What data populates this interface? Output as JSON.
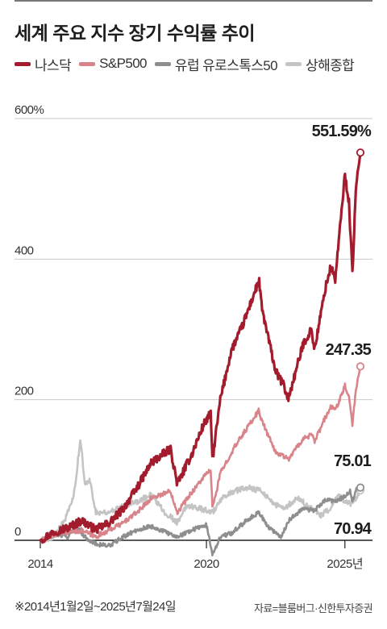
{
  "title": "세계 주요 지수 장기 수익률 추이",
  "footnote": "※2014년1월2일~2025년7월24일",
  "source": "자료=블룸버그·신한투자증권",
  "chart_data": {
    "type": "line",
    "title": "세계 주요 지수 장기 수익률 추이",
    "xlabel": "",
    "ylabel": "",
    "ylim": [
      0,
      600
    ],
    "xlim": [
      2014.0,
      2025.56
    ],
    "grid": true,
    "legend": "top",
    "y_ticks": [
      {
        "value": 600,
        "label": "600%"
      },
      {
        "value": 400,
        "label": "400"
      },
      {
        "value": 200,
        "label": "200"
      },
      {
        "value": 0,
        "label": "0"
      }
    ],
    "x_ticks": [
      {
        "value": 2014,
        "label": "2014"
      },
      {
        "value": 2020,
        "label": "2020"
      },
      {
        "value": 2025,
        "label": "2025년"
      }
    ],
    "series": [
      {
        "name": "나스닥",
        "color": "#a31c2d",
        "end_label": "551.59%",
        "end_value": 551.59,
        "points": [
          [
            2014.0,
            0
          ],
          [
            2014.5,
            12
          ],
          [
            2015.0,
            18
          ],
          [
            2015.5,
            28
          ],
          [
            2016.0,
            15
          ],
          [
            2016.5,
            25
          ],
          [
            2017.0,
            45
          ],
          [
            2017.5,
            75
          ],
          [
            2018.0,
            110
          ],
          [
            2018.7,
            130
          ],
          [
            2018.95,
            80
          ],
          [
            2019.5,
            125
          ],
          [
            2019.9,
            165
          ],
          [
            2020.15,
            180
          ],
          [
            2020.22,
            115
          ],
          [
            2020.5,
            200
          ],
          [
            2020.9,
            270
          ],
          [
            2021.3,
            305
          ],
          [
            2021.9,
            370
          ],
          [
            2022.0,
            330
          ],
          [
            2022.5,
            240
          ],
          [
            2022.8,
            220
          ],
          [
            2022.95,
            200
          ],
          [
            2023.5,
            280
          ],
          [
            2023.8,
            300
          ],
          [
            2023.9,
            270
          ],
          [
            2024.3,
            360
          ],
          [
            2024.5,
            390
          ],
          [
            2024.65,
            370
          ],
          [
            2025.0,
            520
          ],
          [
            2025.15,
            480
          ],
          [
            2025.27,
            380
          ],
          [
            2025.4,
            500
          ],
          [
            2025.56,
            551.59
          ]
        ]
      },
      {
        "name": "S&P500",
        "color": "#d8848a",
        "end_label": "247.35",
        "end_value": 247.35,
        "points": [
          [
            2014.0,
            0
          ],
          [
            2014.5,
            8
          ],
          [
            2015.0,
            12
          ],
          [
            2015.5,
            14
          ],
          [
            2016.0,
            5
          ],
          [
            2016.5,
            15
          ],
          [
            2017.0,
            25
          ],
          [
            2017.5,
            40
          ],
          [
            2018.0,
            60
          ],
          [
            2018.7,
            70
          ],
          [
            2018.95,
            40
          ],
          [
            2019.5,
            70
          ],
          [
            2019.9,
            90
          ],
          [
            2020.15,
            100
          ],
          [
            2020.22,
            45
          ],
          [
            2020.5,
            95
          ],
          [
            2020.9,
            125
          ],
          [
            2021.3,
            150
          ],
          [
            2021.9,
            185
          ],
          [
            2022.0,
            170
          ],
          [
            2022.5,
            125
          ],
          [
            2022.8,
            120
          ],
          [
            2022.95,
            115
          ],
          [
            2023.5,
            145
          ],
          [
            2023.8,
            150
          ],
          [
            2023.9,
            140
          ],
          [
            2024.3,
            175
          ],
          [
            2024.5,
            190
          ],
          [
            2024.65,
            185
          ],
          [
            2025.0,
            220
          ],
          [
            2025.15,
            205
          ],
          [
            2025.27,
            165
          ],
          [
            2025.4,
            215
          ],
          [
            2025.56,
            247.35
          ]
        ]
      },
      {
        "name": "유럽 유로스톡스50",
        "color": "#8e8e8e",
        "end_label": "75.01",
        "end_value": 75.01,
        "points": [
          [
            2014.0,
            0
          ],
          [
            2014.5,
            8
          ],
          [
            2015.0,
            5
          ],
          [
            2015.3,
            20
          ],
          [
            2015.6,
            5
          ],
          [
            2016.0,
            -5
          ],
          [
            2016.5,
            -8
          ],
          [
            2017.0,
            5
          ],
          [
            2017.5,
            15
          ],
          [
            2018.0,
            20
          ],
          [
            2018.5,
            12
          ],
          [
            2018.95,
            5
          ],
          [
            2019.5,
            15
          ],
          [
            2020.0,
            22
          ],
          [
            2020.22,
            -20
          ],
          [
            2020.5,
            5
          ],
          [
            2020.9,
            10
          ],
          [
            2021.5,
            30
          ],
          [
            2021.9,
            40
          ],
          [
            2022.2,
            20
          ],
          [
            2022.7,
            5
          ],
          [
            2023.0,
            30
          ],
          [
            2023.5,
            45
          ],
          [
            2023.9,
            42
          ],
          [
            2024.3,
            58
          ],
          [
            2024.6,
            55
          ],
          [
            2025.0,
            62
          ],
          [
            2025.2,
            70
          ],
          [
            2025.27,
            55
          ],
          [
            2025.4,
            72
          ],
          [
            2025.56,
            75.01
          ]
        ]
      },
      {
        "name": "상해종합",
        "color": "#c4c4c4",
        "end_label": "70.94",
        "end_value": 70.94,
        "points": [
          [
            2014.0,
            0
          ],
          [
            2014.5,
            5
          ],
          [
            2014.9,
            30
          ],
          [
            2015.2,
            60
          ],
          [
            2015.45,
            145
          ],
          [
            2015.6,
            80
          ],
          [
            2015.8,
            85
          ],
          [
            2016.0,
            40
          ],
          [
            2016.5,
            40
          ],
          [
            2017.0,
            50
          ],
          [
            2017.5,
            55
          ],
          [
            2018.0,
            65
          ],
          [
            2018.5,
            40
          ],
          [
            2018.95,
            25
          ],
          [
            2019.3,
            50
          ],
          [
            2019.8,
            45
          ],
          [
            2020.22,
            40
          ],
          [
            2020.6,
            60
          ],
          [
            2021.0,
            70
          ],
          [
            2021.5,
            75
          ],
          [
            2022.0,
            70
          ],
          [
            2022.5,
            50
          ],
          [
            2022.8,
            45
          ],
          [
            2023.3,
            60
          ],
          [
            2023.8,
            45
          ],
          [
            2024.1,
            35
          ],
          [
            2024.5,
            45
          ],
          [
            2024.75,
            65
          ],
          [
            2025.0,
            55
          ],
          [
            2025.27,
            52
          ],
          [
            2025.56,
            70.94
          ]
        ]
      }
    ]
  }
}
